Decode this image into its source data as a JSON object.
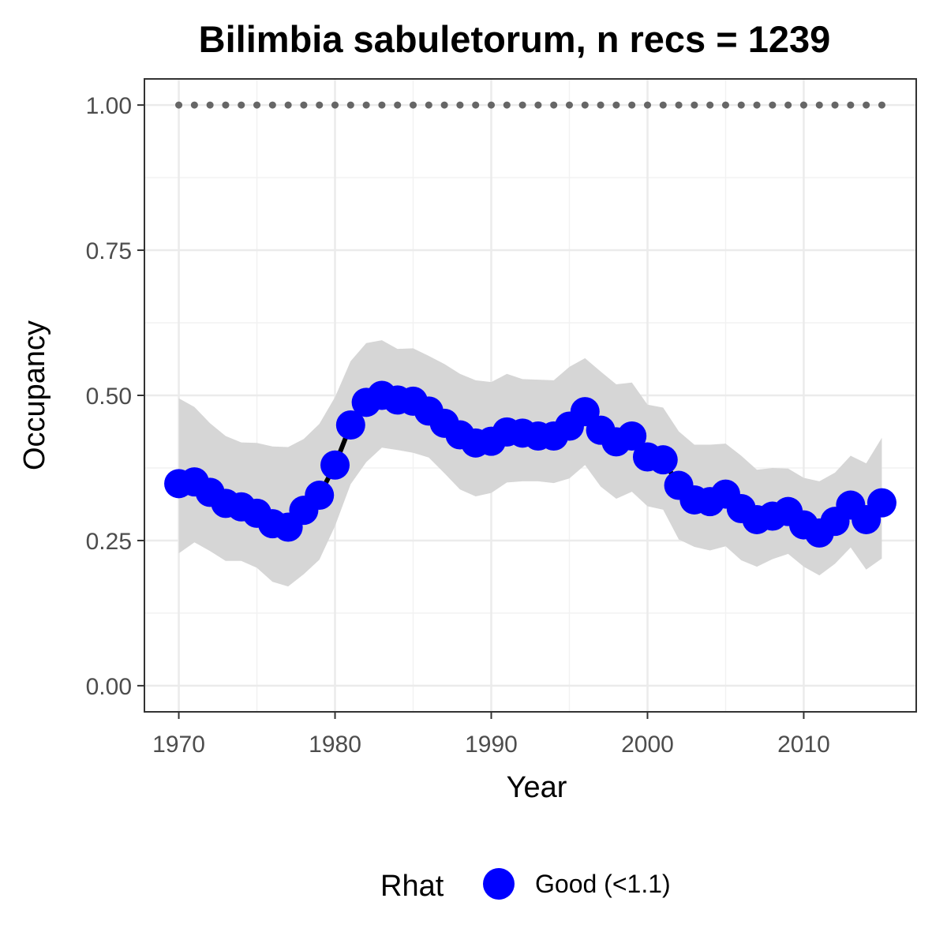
{
  "chart_data": {
    "type": "line",
    "title": "Bilimbia sabuletorum, n recs = 1239",
    "xlabel": "Year",
    "ylabel": "Occupancy",
    "xlim": [
      1967.8,
      2017.2
    ],
    "ylim": [
      -0.045,
      1.045
    ],
    "x_ticks": [
      1970,
      1980,
      1990,
      2000,
      2010
    ],
    "x_tick_labels": [
      "1970",
      "1980",
      "1990",
      "2000",
      "2010"
    ],
    "y_ticks": [
      0,
      0.25,
      0.5,
      0.75,
      1
    ],
    "y_tick_labels": [
      "0.00",
      "0.25",
      "0.50",
      "0.75",
      "1.00"
    ],
    "grid": true,
    "legend": {
      "position": "bottom",
      "title": "Rhat",
      "entries": [
        {
          "label": "Good (<1.1)",
          "color": "#0000ff"
        }
      ]
    },
    "x": [
      1970,
      1971,
      1972,
      1973,
      1974,
      1975,
      1976,
      1977,
      1978,
      1979,
      1980,
      1981,
      1982,
      1983,
      1984,
      1985,
      1986,
      1987,
      1988,
      1989,
      1990,
      1991,
      1992,
      1993,
      1994,
      1995,
      1996,
      1997,
      1998,
      1999,
      2000,
      2001,
      2002,
      2003,
      2004,
      2005,
      2006,
      2007,
      2008,
      2009,
      2010,
      2011,
      2012,
      2013,
      2014,
      2015
    ],
    "series": [
      {
        "name": "Occupancy",
        "color": "#0000ff",
        "values": [
          0.348,
          0.351,
          0.333,
          0.314,
          0.308,
          0.297,
          0.279,
          0.273,
          0.302,
          0.328,
          0.38,
          0.449,
          0.488,
          0.5,
          0.492,
          0.49,
          0.473,
          0.452,
          0.432,
          0.418,
          0.421,
          0.437,
          0.435,
          0.43,
          0.43,
          0.447,
          0.472,
          0.44,
          0.42,
          0.43,
          0.394,
          0.389,
          0.345,
          0.32,
          0.317,
          0.33,
          0.305,
          0.286,
          0.292,
          0.3,
          0.277,
          0.263,
          0.283,
          0.311,
          0.286,
          0.315
        ]
      },
      {
        "name": "Credible interval lower",
        "values": [
          0.228,
          0.247,
          0.232,
          0.215,
          0.215,
          0.203,
          0.179,
          0.171,
          0.192,
          0.217,
          0.275,
          0.347,
          0.385,
          0.41,
          0.406,
          0.401,
          0.393,
          0.366,
          0.338,
          0.326,
          0.332,
          0.35,
          0.352,
          0.352,
          0.349,
          0.357,
          0.38,
          0.343,
          0.322,
          0.334,
          0.309,
          0.303,
          0.252,
          0.239,
          0.233,
          0.24,
          0.216,
          0.205,
          0.218,
          0.227,
          0.205,
          0.19,
          0.21,
          0.238,
          0.2,
          0.219
        ]
      },
      {
        "name": "Credible interval upper",
        "values": [
          0.495,
          0.48,
          0.452,
          0.43,
          0.419,
          0.418,
          0.412,
          0.411,
          0.425,
          0.451,
          0.497,
          0.559,
          0.59,
          0.595,
          0.58,
          0.581,
          0.568,
          0.554,
          0.537,
          0.526,
          0.523,
          0.537,
          0.528,
          0.527,
          0.526,
          0.549,
          0.564,
          0.541,
          0.519,
          0.522,
          0.484,
          0.479,
          0.438,
          0.415,
          0.415,
          0.417,
          0.396,
          0.372,
          0.375,
          0.374,
          0.358,
          0.352,
          0.367,
          0.396,
          0.383,
          0.427
        ]
      },
      {
        "name": "Reference",
        "color": "#666666",
        "values": [
          1,
          1,
          1,
          1,
          1,
          1,
          1,
          1,
          1,
          1,
          1,
          1,
          1,
          1,
          1,
          1,
          1,
          1,
          1,
          1,
          1,
          1,
          1,
          1,
          1,
          1,
          1,
          1,
          1,
          1,
          1,
          1,
          1,
          1,
          1,
          1,
          1,
          1,
          1,
          1,
          1,
          1,
          1,
          1,
          1,
          1
        ]
      }
    ]
  }
}
